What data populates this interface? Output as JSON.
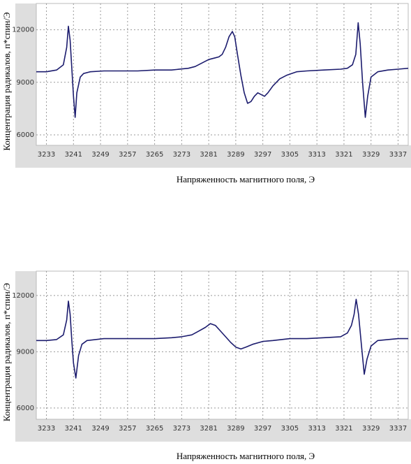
{
  "chart_data": [
    {
      "type": "line",
      "x_label": "Напряженность магнитного поля, Э",
      "y_label": "Концентрация радикалов, п*спин/Э",
      "xlim": [
        3230,
        3340
      ],
      "ylim": [
        5400,
        13500
      ],
      "xticks": [
        3233,
        3241,
        3249,
        3257,
        3265,
        3273,
        3281,
        3289,
        3297,
        3305,
        3313,
        3321,
        3329,
        3337
      ],
      "yticks": [
        6000,
        9000,
        12000
      ],
      "grid": true,
      "series": [
        {
          "color": "#1c1c6e",
          "x": [
            3230,
            3233,
            3236,
            3238,
            3239,
            3239.5,
            3240,
            3240.5,
            3241,
            3241.5,
            3242,
            3243,
            3244,
            3246,
            3250,
            3255,
            3260,
            3265,
            3270,
            3275,
            3277,
            3279,
            3281,
            3283,
            3284,
            3285,
            3286,
            3287,
            3288,
            3288.7,
            3289.5,
            3290.5,
            3291.5,
            3292.5,
            3293.5,
            3294.5,
            3295.5,
            3296.5,
            3297.5,
            3298.5,
            3300,
            3302,
            3304,
            3307,
            3310,
            3315,
            3320,
            3322,
            3323.5,
            3324.5,
            3325.2,
            3325.8,
            3326.5,
            3327.3,
            3328,
            3329,
            3331,
            3334,
            3337,
            3340
          ],
          "values": [
            9600,
            9600,
            9700,
            10000,
            11000,
            12200,
            11400,
            9800,
            8200,
            7000,
            8400,
            9300,
            9500,
            9600,
            9650,
            9650,
            9650,
            9700,
            9700,
            9800,
            9900,
            10100,
            10300,
            10400,
            10450,
            10600,
            11000,
            11600,
            11900,
            11600,
            10600,
            9400,
            8400,
            7800,
            7900,
            8200,
            8400,
            8300,
            8200,
            8400,
            8800,
            9200,
            9400,
            9600,
            9650,
            9700,
            9750,
            9800,
            10000,
            10600,
            12400,
            11200,
            9000,
            7000,
            8200,
            9300,
            9600,
            9700,
            9750,
            9800
          ]
        }
      ]
    },
    {
      "type": "line",
      "x_label": "Напряженность магнитного поля, Э",
      "y_label": "Концентрация радикалов, п*спин/Э",
      "xlim": [
        3230,
        3340
      ],
      "ylim": [
        5400,
        13300
      ],
      "xticks": [
        3233,
        3241,
        3249,
        3257,
        3265,
        3273,
        3281,
        3289,
        3297,
        3305,
        3313,
        3321,
        3329,
        3337
      ],
      "yticks": [
        6000,
        9000,
        12000
      ],
      "grid": true,
      "series": [
        {
          "color": "#1c1c6e",
          "x": [
            3230,
            3233,
            3236,
            3238,
            3239,
            3239.5,
            3240,
            3240.5,
            3241,
            3241.7,
            3242.5,
            3243.5,
            3245,
            3250,
            3255,
            3260,
            3265,
            3270,
            3273,
            3276,
            3278,
            3280,
            3281.5,
            3283,
            3284.5,
            3286,
            3287.5,
            3289,
            3290.5,
            3292,
            3294,
            3297,
            3300,
            3305,
            3310,
            3315,
            3320,
            3322,
            3323.2,
            3324,
            3324.6,
            3325.3,
            3326.2,
            3327,
            3327.8,
            3329,
            3331,
            3334,
            3337,
            3340
          ],
          "values": [
            9600,
            9600,
            9650,
            9900,
            10700,
            11700,
            11000,
            9600,
            8400,
            7600,
            8800,
            9400,
            9600,
            9700,
            9700,
            9700,
            9700,
            9750,
            9800,
            9900,
            10100,
            10300,
            10500,
            10400,
            10100,
            9800,
            9500,
            9250,
            9150,
            9250,
            9400,
            9550,
            9600,
            9700,
            9700,
            9750,
            9800,
            10000,
            10400,
            11000,
            11800,
            11000,
            9300,
            7800,
            8600,
            9300,
            9600,
            9650,
            9700,
            9700
          ]
        }
      ]
    }
  ]
}
